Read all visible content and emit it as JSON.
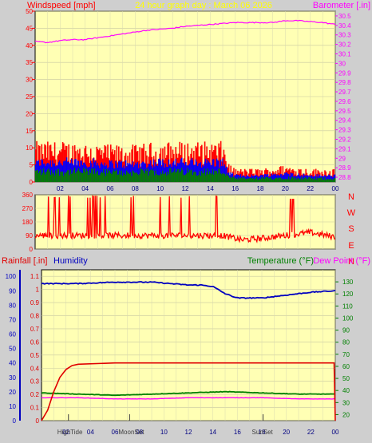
{
  "header": {
    "title": "24 hour graph day : March 06 2026",
    "left_label": "Windspeed [mph]",
    "right_label": "Barometer [.in]"
  },
  "colors": {
    "background": "#cfcfcf",
    "plot_bg": "#ffffb4",
    "wind": "#ff0000",
    "gust_blue": "#0000ff",
    "gust_green": "#008000",
    "barometer": "#ff00ff",
    "humidity": "#0000c0",
    "temperature": "#008000",
    "dewpoint": "#ff00ff",
    "rain": "#e00000",
    "title": "#ffff00"
  },
  "direction_labels": [
    "N",
    "W",
    "S",
    "E",
    "N"
  ],
  "lower_header": {
    "rain_label": "Rainfall [.in]",
    "humidity_label": "Humidity",
    "temp_label": "Temperature (°F)",
    "dew_label": "Dew Point (°F)"
  },
  "events": [
    {
      "label": "HighTide",
      "hour": 2.2
    },
    {
      "label": "MoonSet",
      "hour": 7.2
    },
    {
      "label": "SunSet",
      "hour": 18.1
    }
  ],
  "chart_data": [
    {
      "type": "line",
      "name": "wind_and_barometer",
      "x_ticks": [
        "02",
        "04",
        "06",
        "08",
        "10",
        "12",
        "14",
        "16",
        "18",
        "20",
        "22",
        "00"
      ],
      "left_axis": {
        "label": "Windspeed [mph]",
        "ylim": [
          0,
          50
        ],
        "ticks": [
          0,
          5,
          10,
          15,
          20,
          25,
          30,
          35,
          40,
          45,
          50
        ]
      },
      "right_axis": {
        "label": "Barometer [.in]",
        "ylim": [
          28.75,
          30.55
        ],
        "ticks": [
          "28.8",
          "28.9",
          "29",
          "29.1",
          "29.2",
          "29.3",
          "29.4",
          "29.5",
          "29.6",
          "29.7",
          "29.8",
          "29.9",
          "30",
          "30.1",
          "30.2",
          "30.3",
          "30.4",
          "30.5"
        ]
      },
      "barometer": {
        "hours": [
          0,
          1,
          2,
          3,
          4,
          5,
          6,
          7,
          8,
          9,
          10,
          11,
          12,
          13,
          14,
          15,
          16,
          17,
          18,
          19,
          20,
          21,
          22,
          23,
          24
        ],
        "values": [
          30.23,
          30.22,
          30.24,
          30.25,
          30.25,
          30.27,
          30.29,
          30.31,
          30.33,
          30.35,
          30.36,
          30.37,
          30.39,
          30.4,
          30.41,
          30.42,
          30.43,
          30.43,
          30.43,
          30.43,
          30.45,
          30.45,
          30.44,
          30.43,
          30.41
        ]
      },
      "wind_max": {
        "hours": [
          0,
          2,
          4,
          6,
          8,
          10,
          12,
          14,
          15,
          15.5,
          16,
          18,
          20,
          22,
          24
        ],
        "values": [
          12,
          12,
          12,
          11,
          11,
          12,
          12,
          12,
          12,
          5,
          4,
          4,
          5,
          4,
          4
        ]
      },
      "grid": true
    },
    {
      "type": "line",
      "name": "wind_direction",
      "ylim": [
        0,
        360
      ],
      "y_ticks": [
        0,
        90,
        180,
        270,
        360
      ],
      "values_description_hours": [
        0,
        12,
        15,
        16.5,
        18,
        20,
        22,
        24
      ],
      "values": [
        90,
        90,
        90,
        60,
        70,
        90,
        110,
        80
      ]
    },
    {
      "type": "line",
      "name": "rain_humidity_temperature",
      "left_axis": {
        "label": "Rainfall [.in]",
        "ylim": [
          0,
          1.15
        ],
        "ticks": [
          "0",
          "0.1",
          "0.2",
          "0.3",
          "0.4",
          "0.5",
          "0.6",
          "0.7",
          "0.8",
          "0.9",
          "1",
          "1.1"
        ]
      },
      "left_axis_humidity": {
        "ticks": [
          0,
          10,
          20,
          30,
          40,
          50,
          60,
          70,
          80,
          90,
          100
        ]
      },
      "right_axis": {
        "ylim": [
          15,
          140
        ],
        "ticks": [
          20,
          30,
          40,
          50,
          60,
          70,
          80,
          90,
          100,
          110,
          120,
          130
        ]
      },
      "humidity": {
        "hours": [
          0,
          3,
          6,
          9,
          12,
          13,
          14,
          15,
          16,
          18,
          20,
          22,
          24
        ],
        "values": [
          95,
          95,
          96,
          96,
          94,
          94,
          93,
          88,
          85,
          85,
          87,
          89,
          90
        ]
      },
      "temperature": {
        "hours": [
          0,
          3,
          6,
          9,
          12,
          15,
          18,
          21,
          24
        ],
        "values": [
          38,
          37,
          36,
          37,
          38,
          39,
          38,
          37,
          37
        ]
      },
      "dewpoint": {
        "hours": [
          0,
          3,
          6,
          9,
          12,
          15,
          18,
          21,
          24
        ],
        "values": [
          34,
          34,
          33,
          33,
          34,
          34,
          34,
          33,
          33
        ]
      },
      "rain": {
        "hours": [
          0,
          0.5,
          1,
          1.5,
          2,
          2.5,
          3,
          6,
          12,
          18,
          23.9,
          24
        ],
        "values": [
          0,
          0.08,
          0.22,
          0.33,
          0.39,
          0.42,
          0.43,
          0.44,
          0.44,
          0.44,
          0.44,
          0.0
        ]
      },
      "grid": true
    }
  ]
}
